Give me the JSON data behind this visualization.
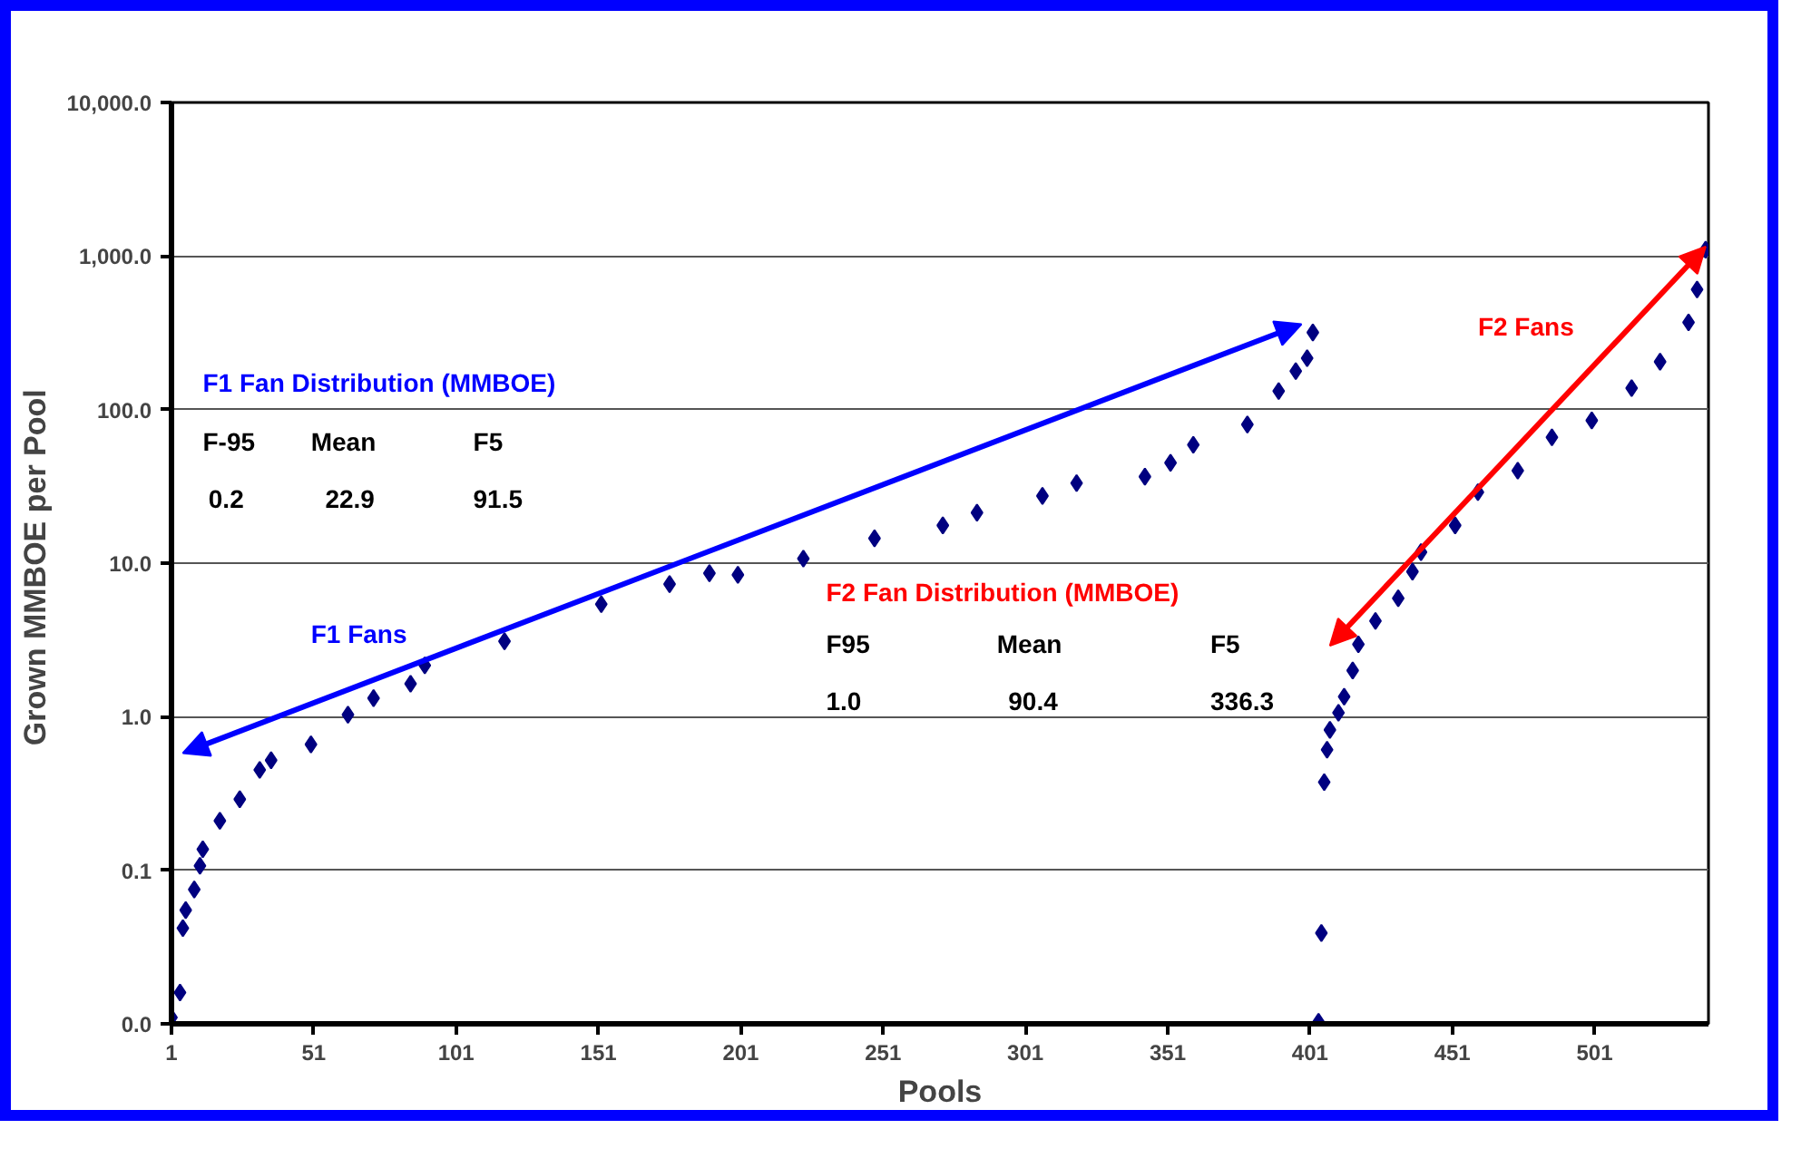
{
  "chart_data": {
    "type": "scatter",
    "xlabel": "Pools",
    "ylabel": "Grown  MMBOE per Pool",
    "x": [
      1,
      4,
      5,
      6,
      9,
      11,
      12,
      18,
      25,
      32,
      36,
      50,
      63,
      72,
      85,
      90,
      118,
      152,
      176,
      190,
      200,
      223,
      248,
      272,
      284,
      307,
      319,
      343,
      352,
      360,
      379,
      390,
      396,
      400,
      402,
      404,
      405,
      406,
      407,
      408,
      411,
      413,
      416,
      418,
      424,
      432,
      437,
      440,
      452,
      460,
      474,
      486,
      500,
      514,
      524,
      534,
      537,
      540
    ],
    "series": [
      {
        "color": "#000080",
        "values": [
          0.011,
          0.016,
          0.042,
          0.055,
          0.075,
          0.107,
          0.137,
          0.21,
          0.29,
          0.45,
          0.52,
          0.66,
          1.03,
          1.32,
          1.64,
          2.16,
          3.1,
          5.4,
          7.3,
          8.6,
          8.4,
          10.7,
          14.5,
          17.6,
          21.3,
          27.4,
          33.2,
          36.6,
          45,
          59,
          80,
          132,
          178,
          216,
          318,
          0.0103,
          0.039,
          0.375,
          0.61,
          0.82,
          1.06,
          1.35,
          2.0,
          2.96,
          4.2,
          5.9,
          8.8,
          11.8,
          17.6,
          29,
          40,
          66,
          85,
          138,
          205,
          370,
          605,
          1100
        ]
      }
    ],
    "log": "y",
    "xlim": [
      1,
      541
    ],
    "ylim": [
      0.01,
      10000
    ],
    "xticks": [
      1,
      51,
      101,
      151,
      201,
      251,
      301,
      351,
      401,
      451,
      501
    ],
    "yticks": [
      {
        "value": 0.01,
        "label": "0.0"
      },
      {
        "value": 0.1,
        "label": "0.1"
      },
      {
        "value": 1,
        "label": "1.0"
      },
      {
        "value": 10,
        "label": "10.0"
      },
      {
        "value": 100,
        "label": "100.0"
      },
      {
        "value": 1000,
        "label": "1,000.0"
      },
      {
        "value": 10000,
        "label": "10,000.0"
      }
    ],
    "grid": "y",
    "marker": "diamond",
    "annotations": [
      "F1 Fan Distribution (MMBOE)",
      "F-95",
      "Mean",
      "F5",
      "0.2",
      "22.9",
      "91.5",
      "F1 Fans",
      "F2 Fan Distribution (MMBOE)",
      "F95",
      "Mean",
      "F5",
      "1.0",
      "90.4",
      "336.3",
      "F2 Fans"
    ]
  }
}
